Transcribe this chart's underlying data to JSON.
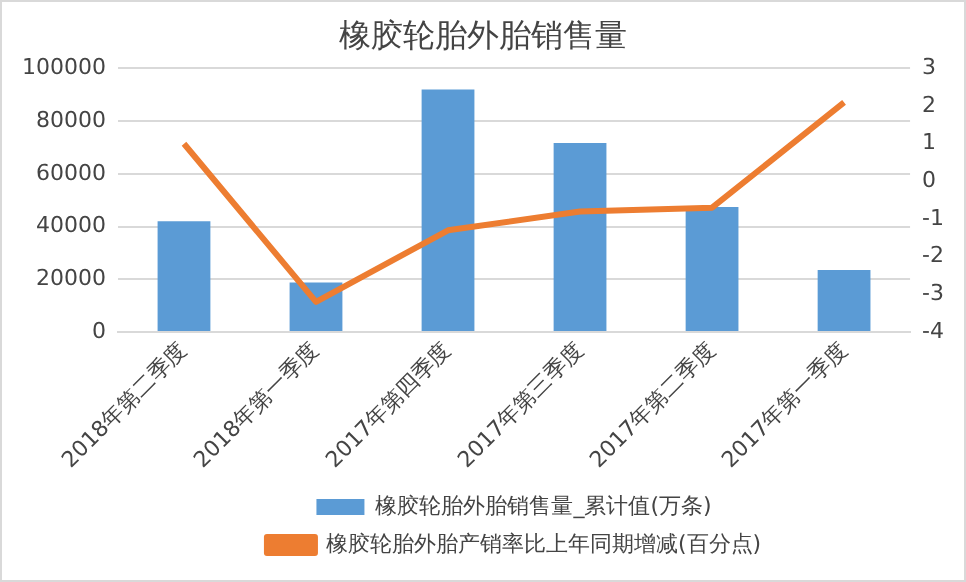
{
  "chart_data": {
    "type": "bar",
    "title": "橡胶轮胎外胎销售量",
    "categories": [
      "2018年第二季度",
      "2018年第一季度",
      "2017年第四季度",
      "2017年第三季度",
      "2017年第二季度",
      "2017年第一季度"
    ],
    "series": [
      {
        "name": "橡胶轮胎外胎销售量_累计值(万条)",
        "color": "#5b9bd5",
        "values": [
          42000,
          18800,
          92000,
          71700,
          47400,
          23500
        ]
      },
      {
        "name": "橡胶轮胎外胎产销率比上年同期增减(百分点)",
        "type": "line",
        "axis": "y2",
        "color": "#ed7d31",
        "values": [
          1.0,
          -3.2,
          -1.3,
          -0.8,
          -0.7,
          2.1
        ]
      }
    ],
    "ylim": [
      0,
      100000
    ],
    "yticks": [
      0,
      20000,
      40000,
      60000,
      80000,
      100000
    ],
    "y2lim": [
      -4,
      3
    ],
    "y2ticks": [
      -4,
      -3,
      -2,
      -1,
      0,
      1,
      2,
      3
    ],
    "grid": "y",
    "legend": "bottom",
    "marker": "none"
  }
}
